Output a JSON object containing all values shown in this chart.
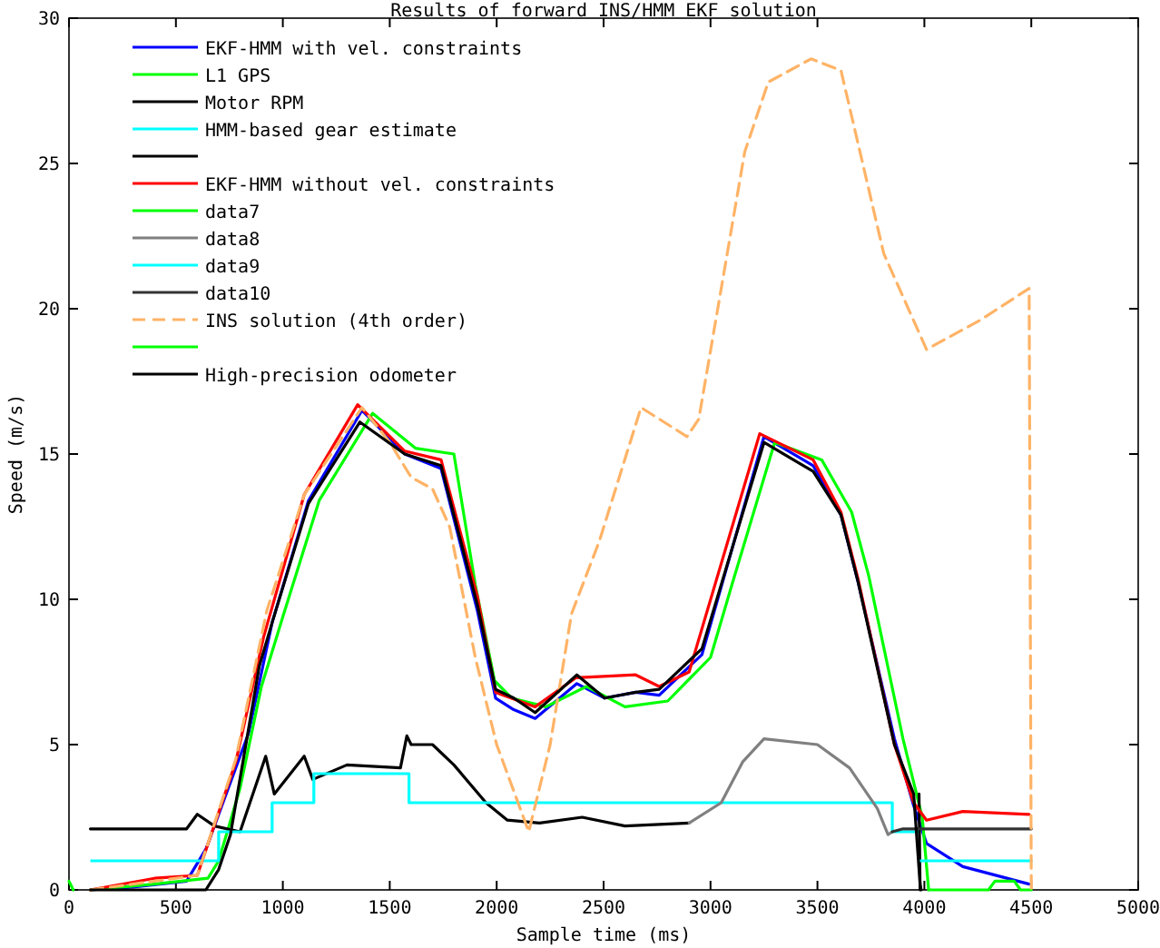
{
  "chart_data": {
    "type": "line",
    "title": "Results of forward INS/HMM EKF solution",
    "xlabel": "Sample time (ms)",
    "ylabel": "Speed (m/s)",
    "xlim": [
      0,
      5000
    ],
    "xticks": [
      0,
      500,
      1000,
      1500,
      2000,
      2500,
      3000,
      3500,
      4000,
      4500,
      5000
    ],
    "ylim": [
      0,
      30
    ],
    "yticks": [
      0,
      5,
      10,
      15,
      20,
      25,
      30
    ],
    "grid": false,
    "legend": "top left",
    "marker": "none",
    "series": [
      {
        "name": "EKF-HMM with vel. constraints",
        "color": "#0000ff",
        "x": [
          100,
          300,
          550,
          640,
          840,
          950,
          1120,
          1370,
          1570,
          1740,
          1910,
          1995,
          2080,
          2180,
          2375,
          2505,
          2650,
          2760,
          2960,
          3250,
          3480,
          3610,
          3690,
          3860,
          3950,
          4010,
          4180,
          4490
        ],
        "values": [
          0,
          0.1,
          0.3,
          1.4,
          5.4,
          9.2,
          13.4,
          16.5,
          15,
          14.5,
          9.6,
          6.6,
          6.2,
          5.9,
          7.1,
          6.6,
          6.8,
          6.7,
          8.1,
          15.6,
          14.6,
          12.9,
          10.6,
          5.2,
          2.9,
          1.6,
          0.8,
          0.2
        ]
      },
      {
        "name": "L1 GPS",
        "color": "#00ff00",
        "x": [
          100,
          400,
          650,
          700,
          800,
          900,
          1000,
          1170,
          1420,
          1620,
          1800,
          1900,
          1990,
          2070,
          2230,
          2420,
          2600,
          2800,
          3000,
          3100,
          3300,
          3520,
          3660,
          3740,
          3900,
          3990,
          4020
        ],
        "values": [
          0,
          0.2,
          0.4,
          1.0,
          3.5,
          7.0,
          9.4,
          13.4,
          16.4,
          15.2,
          15,
          10.5,
          7.2,
          6.6,
          6.3,
          7.0,
          6.3,
          6.5,
          8.0,
          10.5,
          15.4,
          14.8,
          13.0,
          10.8,
          5.2,
          2.5,
          0
        ]
      },
      {
        "name": "Motor RPM",
        "color": "#000000",
        "x": [
          100,
          550,
          600,
          680,
          800,
          920,
          960,
          1100,
          1140,
          1300,
          1550,
          1580,
          1600,
          1700,
          1800,
          1950,
          2050,
          2200,
          2400,
          2600,
          2900
        ],
        "values": [
          2.1,
          2.1,
          2.6,
          2.2,
          2.0,
          4.6,
          3.3,
          4.6,
          3.8,
          4.3,
          4.2,
          5.3,
          5.0,
          5.0,
          4.3,
          3.0,
          2.4,
          2.3,
          2.5,
          2.2,
          2.3
        ]
      },
      {
        "name": "HMM-based gear estimate",
        "color": "#00ffff",
        "type": "step",
        "x": [
          100,
          700,
          950,
          1145,
          1590,
          3850,
          3980
        ],
        "values": [
          1,
          2,
          3,
          4,
          3,
          2,
          2
        ]
      },
      {
        "color": "#000000",
        "x": [
          3975,
          3980
        ],
        "values": [
          3.3,
          0
        ]
      },
      {
        "name": "EKF-HMM without vel. constraints",
        "color": "#ff0000",
        "x": [
          100,
          400,
          600,
          780,
          910,
          1100,
          1350,
          1570,
          1740,
          1910,
          1995,
          2180,
          2370,
          2650,
          2760,
          2900,
          3230,
          3480,
          3610,
          3690,
          3860,
          3950,
          4010,
          4180,
          4490
        ],
        "values": [
          0,
          0.4,
          0.5,
          4.4,
          8.7,
          13.6,
          16.7,
          15.1,
          14.8,
          10.1,
          6.8,
          6.3,
          7.3,
          7.4,
          7.0,
          7.5,
          15.7,
          14.8,
          13.0,
          10.7,
          5,
          3.0,
          2.4,
          2.7,
          2.6
        ]
      },
      {
        "name": "data7",
        "color": "#00ff00",
        "x": [
          4020,
          4300,
          4330,
          4420,
          4450,
          4500
        ],
        "values": [
          0,
          0,
          0.3,
          0.3,
          0,
          0
        ]
      },
      {
        "name": "data8",
        "color": "#808080",
        "x": [
          2900,
          3050,
          3150,
          3250,
          3500,
          3650,
          3780,
          3830,
          3850
        ],
        "values": [
          2.3,
          3.0,
          4.4,
          5.2,
          5.0,
          4.2,
          2.8,
          1.9,
          2.0
        ]
      },
      {
        "name": "data9",
        "color": "#00ffff",
        "x": [
          3980,
          4500
        ],
        "values": [
          1,
          1
        ]
      },
      {
        "name": "data10",
        "color": "#333333",
        "x": [
          3850,
          3900,
          4500
        ],
        "values": [
          2.0,
          2.1,
          2.1
        ]
      },
      {
        "name": "INS solution (4th order)",
        "color": "#ffb366",
        "line_style": "dashed",
        "x": [
          100,
          600,
          780,
          925,
          1100,
          1370,
          1500,
          1600,
          1700,
          1780,
          1900,
          2000,
          2150,
          2250,
          2350,
          2480,
          2675,
          2890,
          2945,
          3160,
          3270,
          3470,
          3610,
          3810,
          4010,
          4260,
          4490,
          4500
        ],
        "values": [
          0,
          0.5,
          4.5,
          9.6,
          13.6,
          16.6,
          15.4,
          14.2,
          13.8,
          12.5,
          8.0,
          5.0,
          2.0,
          5.0,
          9.5,
          12.0,
          16.6,
          15.6,
          16.2,
          25.4,
          27.8,
          28.6,
          28.2,
          21.9,
          18.6,
          19.6,
          20.7,
          0
        ]
      },
      {
        "color": "#00ff00",
        "x": [
          0,
          20
        ],
        "values": [
          0.3,
          0
        ]
      },
      {
        "name": "High-precision odometer",
        "color": "#000000",
        "x": [
          100,
          640,
          700,
          755,
          890,
          950,
          1120,
          1360,
          1570,
          1740,
          1910,
          1995,
          2080,
          2180,
          2375,
          2505,
          2650,
          2760,
          2960,
          3250,
          3480,
          3610,
          3690,
          3860,
          3950,
          3980,
          3985
        ],
        "values": [
          0,
          0,
          0.7,
          1.9,
          7.7,
          9.2,
          13.3,
          16.1,
          15,
          14.6,
          9.8,
          6.9,
          6.6,
          6.1,
          7.4,
          6.6,
          6.8,
          6.9,
          8.3,
          15.4,
          14.4,
          12.9,
          10.6,
          5,
          3.3,
          0.2,
          0
        ]
      }
    ]
  }
}
